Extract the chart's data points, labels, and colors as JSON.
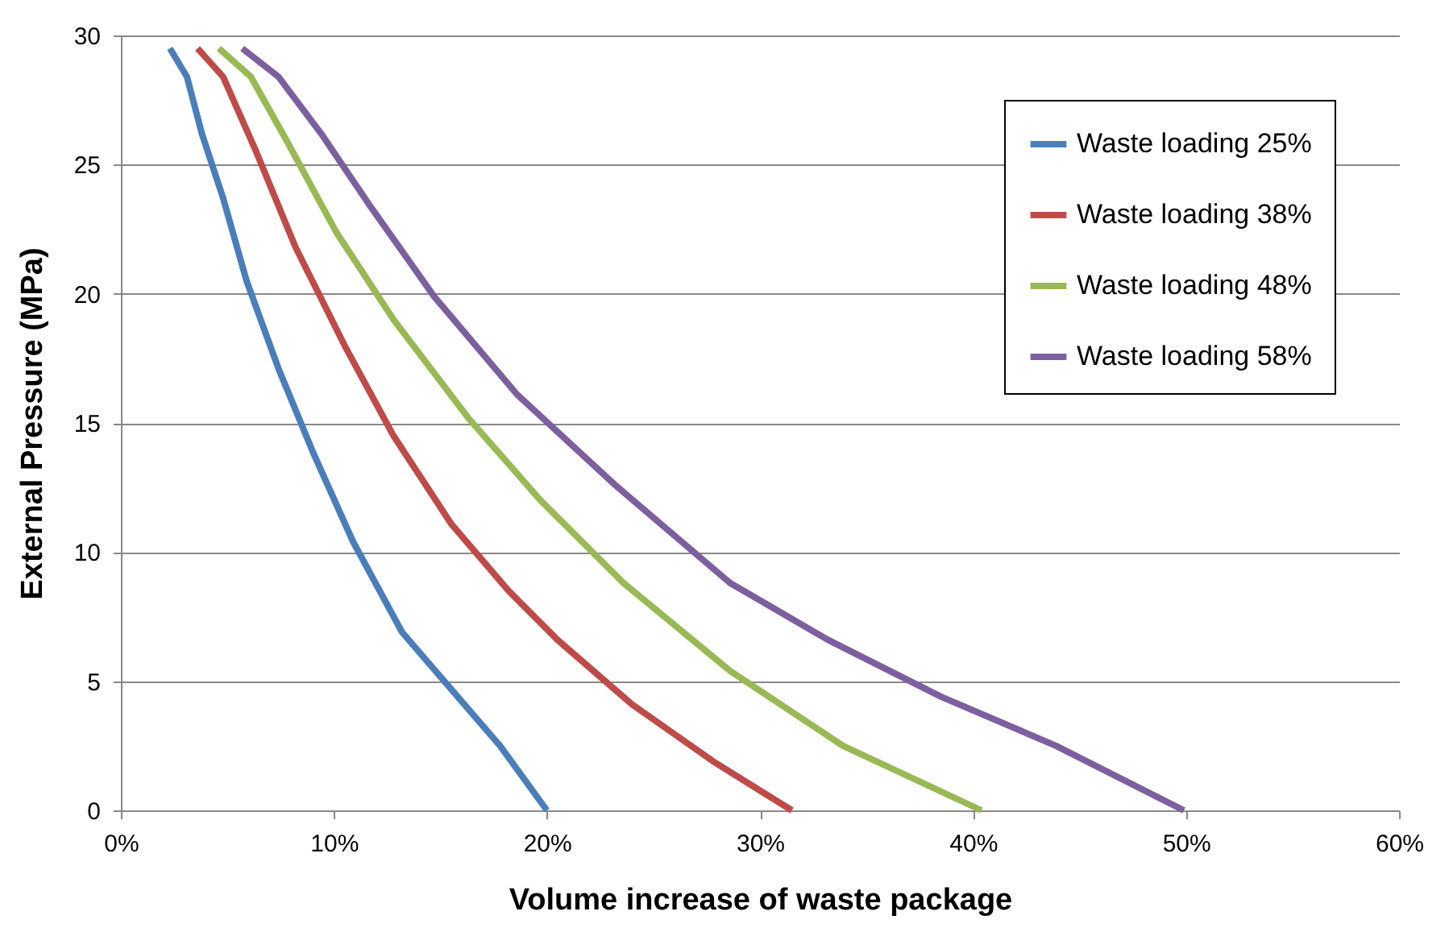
{
  "chart_data": {
    "type": "line",
    "xlabel": "Volume increase of waste package",
    "ylabel": "External Pressure (MPa)",
    "xlim": [
      0,
      60
    ],
    "xticks": [
      {
        "value": 0,
        "label": "0%"
      },
      {
        "value": 10,
        "label": "10%"
      },
      {
        "value": 20,
        "label": "20%"
      },
      {
        "value": 30,
        "label": "30%"
      },
      {
        "value": 40,
        "label": "40%"
      },
      {
        "value": 50,
        "label": "50%"
      },
      {
        "value": 60,
        "label": "60%"
      }
    ],
    "ylim": [
      0,
      30
    ],
    "yticks": [
      0,
      5,
      10,
      15,
      20,
      25,
      30
    ],
    "grid": "y",
    "legend": "top right",
    "marker": "none",
    "line_style": "solid",
    "series": [
      {
        "name": "Waste loading 25%",
        "color": "#4a7ebb",
        "x": [
          2.3,
          3.1,
          3.8,
          4.8,
          5.9,
          7.4,
          9.0,
          10.9,
          13.2,
          15.5,
          17.8,
          20.0
        ],
        "values": [
          29.5,
          28.4,
          26.2,
          23.7,
          20.5,
          17.1,
          13.9,
          10.4,
          6.9,
          4.7,
          2.5,
          0
        ]
      },
      {
        "name": "Waste loading 38%",
        "color": "#be4b48",
        "x": [
          3.6,
          4.8,
          6.3,
          8.2,
          10.5,
          12.8,
          15.5,
          18.2,
          20.5,
          24.0,
          27.8,
          31.5
        ],
        "values": [
          29.5,
          28.4,
          25.6,
          21.8,
          18.0,
          14.5,
          11.1,
          8.5,
          6.6,
          4.1,
          1.9,
          0
        ]
      },
      {
        "name": "Waste loading 48%",
        "color": "#98b954",
        "x": [
          4.6,
          6.1,
          7.8,
          10.1,
          12.8,
          16.3,
          19.7,
          23.6,
          28.6,
          33.9,
          40.4
        ],
        "values": [
          29.5,
          28.4,
          25.9,
          22.4,
          19.0,
          15.2,
          12.0,
          8.8,
          5.4,
          2.5,
          0
        ]
      },
      {
        "name": "Waste loading 58%",
        "color": "#7d5fa0",
        "x": [
          5.7,
          7.4,
          9.4,
          11.7,
          14.7,
          18.6,
          23.2,
          28.6,
          33.2,
          38.5,
          43.9,
          49.9
        ],
        "values": [
          29.5,
          28.4,
          26.2,
          23.4,
          19.9,
          16.1,
          12.6,
          8.8,
          6.6,
          4.4,
          2.5,
          0
        ]
      }
    ]
  }
}
